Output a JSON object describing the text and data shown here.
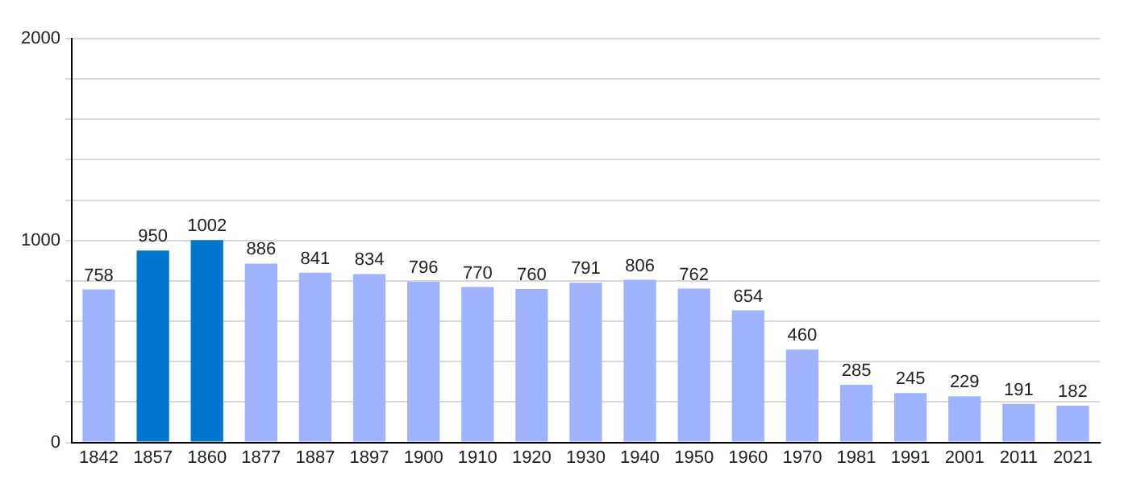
{
  "chart_data": {
    "type": "bar",
    "categories": [
      "1842",
      "1857",
      "1860",
      "1877",
      "1887",
      "1897",
      "1900",
      "1910",
      "1920",
      "1930",
      "1940",
      "1950",
      "1960",
      "1970",
      "1981",
      "1991",
      "2001",
      "2011",
      "2021"
    ],
    "values": [
      758,
      950,
      1002,
      886,
      841,
      834,
      796,
      770,
      760,
      791,
      806,
      762,
      654,
      460,
      285,
      245,
      229,
      191,
      182
    ],
    "colors": [
      "#a0b3ff",
      "#0077cc",
      "#0077cc",
      "#a0b3ff",
      "#a0b3ff",
      "#a0b3ff",
      "#a0b3ff",
      "#a0b3ff",
      "#a0b3ff",
      "#a0b3ff",
      "#a0b3ff",
      "#a0b3ff",
      "#a0b3ff",
      "#a0b3ff",
      "#a0b3ff",
      "#a0b3ff",
      "#a0b3ff",
      "#a0b3ff",
      "#a0b3ff"
    ],
    "ylim": [
      0,
      2000
    ],
    "yticks": [
      0,
      {
        "value": 200,
        "label": null
      },
      {
        "value": 400,
        "label": null
      },
      {
        "value": 600,
        "label": null
      },
      {
        "value": 800,
        "label": null
      },
      1000,
      {
        "value": 1200,
        "label": null
      },
      {
        "value": 1400,
        "label": null
      },
      {
        "value": 1600,
        "label": null
      },
      {
        "value": 1800,
        "label": null
      },
      2000
    ],
    "grid": "y",
    "data_labels": true,
    "legend": false
  }
}
